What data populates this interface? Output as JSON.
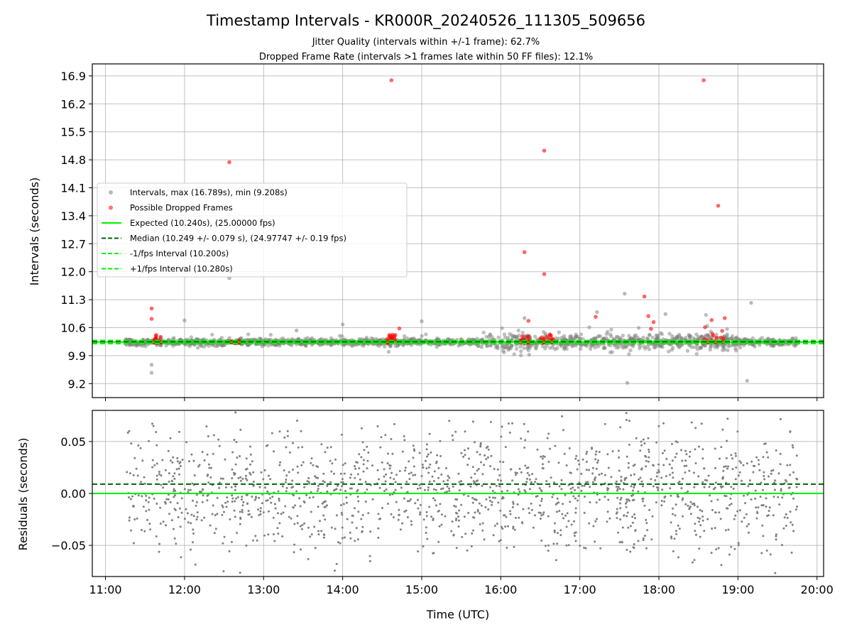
{
  "chart_data": [
    {
      "type": "scatter",
      "title": "Timestamp Intervals - KR000R_20240526_111305_509656",
      "subtitle_lines": [
        "Jitter Quality (intervals within +/-1 frame): 62.7%",
        "Dropped Frame Rate (intervals >1 frames late within 50 FF files): 12.1%"
      ],
      "xlabel": "",
      "ylabel": "Intervals (seconds)",
      "xlim": [
        "10:50",
        "20:05"
      ],
      "ylim": [
        8.85,
        17.2
      ],
      "yticks": [
        "9.2",
        "9.9",
        "10.6",
        "11.3",
        "12.0",
        "12.7",
        "13.4",
        "14.1",
        "14.8",
        "15.5",
        "16.2",
        "16.9"
      ],
      "grid": true,
      "legend_position": "center-left",
      "series": [
        {
          "name": "Intervals, max (16.789s), min (9.208s)",
          "color": "#808080",
          "marker": "circle",
          "x_range": [
            "11:15",
            "19:45"
          ],
          "y_center": 10.24,
          "y_jitter": 0.079,
          "outliers": [
            {
              "x": "12:00",
              "y": 10.78
            },
            {
              "x": "12:34",
              "y": 11.84
            },
            {
              "x": "13:25",
              "y": 10.53
            },
            {
              "x": "14:00",
              "y": 10.68
            },
            {
              "x": "15:00",
              "y": 10.76
            },
            {
              "x": "16:18",
              "y": 10.84
            },
            {
              "x": "17:13",
              "y": 10.99
            },
            {
              "x": "17:34",
              "y": 11.45
            },
            {
              "x": "17:36",
              "y": 9.22
            },
            {
              "x": "18:05",
              "y": 10.94
            },
            {
              "x": "19:10",
              "y": 11.22
            },
            {
              "x": "19:07",
              "y": 9.27
            },
            {
              "x": "11:35",
              "y": 9.47
            },
            {
              "x": "11:35",
              "y": 9.67
            }
          ]
        },
        {
          "name": "Possible Dropped Frames",
          "color": "#ff0000",
          "marker": "circle",
          "points": [
            {
              "x": "11:35",
              "y": 11.08
            },
            {
              "x": "11:35",
              "y": 10.82
            },
            {
              "x": "12:34",
              "y": 14.74
            },
            {
              "x": "14:37",
              "y": 16.79
            },
            {
              "x": "14:43",
              "y": 10.58
            },
            {
              "x": "16:18",
              "y": 12.49
            },
            {
              "x": "16:21",
              "y": 10.77
            },
            {
              "x": "16:33",
              "y": 15.03
            },
            {
              "x": "16:33",
              "y": 11.94
            },
            {
              "x": "17:12",
              "y": 10.87
            },
            {
              "x": "17:49",
              "y": 11.38
            },
            {
              "x": "17:52",
              "y": 10.89
            },
            {
              "x": "17:56",
              "y": 10.74
            },
            {
              "x": "17:54",
              "y": 10.57
            },
            {
              "x": "18:34",
              "y": 16.79
            },
            {
              "x": "18:35",
              "y": 10.61
            },
            {
              "x": "18:40",
              "y": 10.79
            },
            {
              "x": "18:45",
              "y": 13.65
            },
            {
              "x": "18:50",
              "y": 10.84
            },
            {
              "x": "18:48",
              "y": 10.52
            }
          ],
          "clusters": [
            {
              "x_range": [
                "11:37",
                "11:42"
              ],
              "y_range": [
                10.22,
                10.42
              ]
            },
            {
              "x_range": [
                "12:32",
                "12:43"
              ],
              "y_range": [
                10.22,
                10.27
              ]
            },
            {
              "x_range": [
                "14:33",
                "14:42"
              ],
              "y_range": [
                10.22,
                10.44
              ]
            },
            {
              "x_range": [
                "16:15",
                "16:25"
              ],
              "y_range": [
                10.22,
                10.4
              ]
            },
            {
              "x_range": [
                "16:30",
                "16:40"
              ],
              "y_range": [
                10.22,
                10.45
              ]
            },
            {
              "x_range": [
                "18:33",
                "18:50"
              ],
              "y_range": [
                10.22,
                10.45
              ]
            }
          ]
        },
        {
          "name": "Expected (10.240s), (25.00000 fps)",
          "color": "#00ee00",
          "style": "solid",
          "y": 10.24
        },
        {
          "name": "Median (10.249 +/- 0.079 s), (24.97747 +/- 0.19 fps)",
          "color": "#006400",
          "style": "dashed",
          "y": 10.249
        },
        {
          "name": "-1/fps Interval (10.200s)",
          "color": "#00ee00",
          "style": "dashed",
          "y": 10.2
        },
        {
          "name": "+1/fps Interval (10.280s)",
          "color": "#00ee00",
          "style": "dashed",
          "y": 10.28
        }
      ]
    },
    {
      "type": "scatter",
      "title": "",
      "xlabel": "Time (UTC)",
      "ylabel": "Residuals (seconds)",
      "xlim": [
        "10:50",
        "20:05"
      ],
      "xticks": [
        "11:00",
        "12:00",
        "13:00",
        "14:00",
        "15:00",
        "16:00",
        "17:00",
        "18:00",
        "19:00",
        "20:00"
      ],
      "ylim": [
        -0.08,
        0.08
      ],
      "yticks": [
        "−0.05",
        "0.00",
        "0.05"
      ],
      "grid": true,
      "series": [
        {
          "name": "",
          "color": "#808080",
          "marker": "point",
          "x_range": [
            "11:15",
            "19:45"
          ],
          "y_range": [
            -0.08,
            0.08
          ],
          "y_center": 0.0,
          "y_spread": 0.03
        },
        {
          "name": "",
          "color": "#006400",
          "style": "dashed",
          "y": 0.009
        },
        {
          "name": "",
          "color": "#00ee00",
          "style": "solid",
          "y": 0.0
        }
      ]
    }
  ]
}
